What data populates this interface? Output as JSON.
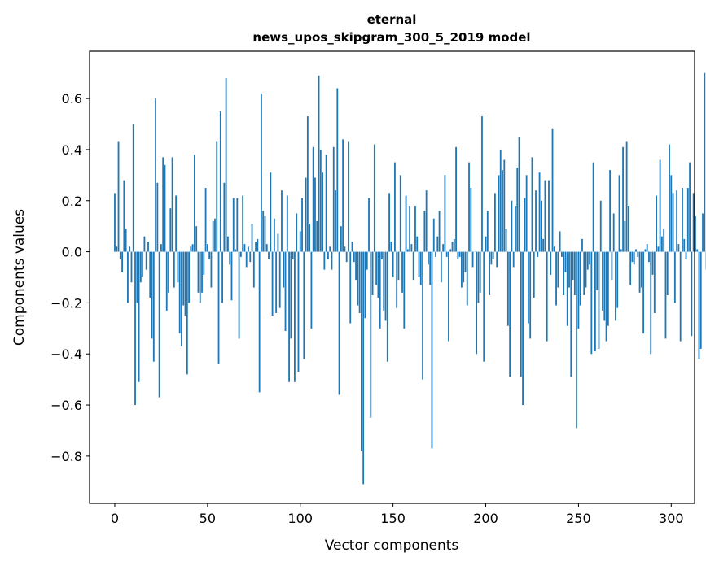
{
  "chart_data": {
    "type": "bar",
    "title": "eternal",
    "subtitle": "news_upos_skipgram_300_5_2019 model",
    "xlabel": "Vector components",
    "ylabel": "Components values",
    "xlim": [
      -13.6,
      312.6
    ],
    "ylim": [
      -0.985,
      0.785
    ],
    "xticks": [
      0,
      50,
      100,
      150,
      200,
      250,
      300
    ],
    "xtick_labels": [
      "0",
      "50",
      "100",
      "150",
      "200",
      "250",
      "300"
    ],
    "yticks": [
      -0.8,
      -0.6,
      -0.4,
      -0.2,
      0.0,
      0.2,
      0.4,
      0.6
    ],
    "ytick_labels": [
      "−0.8",
      "−0.6",
      "−0.4",
      "−0.2",
      "0.0",
      "0.2",
      "0.4",
      "0.6"
    ],
    "grid": false,
    "bar_color": "#1f77b4",
    "values": [
      0.23,
      0.02,
      0.43,
      -0.03,
      -0.08,
      0.28,
      0.09,
      -0.2,
      0.02,
      -0.12,
      0.5,
      -0.6,
      -0.2,
      -0.51,
      -0.12,
      -0.1,
      0.06,
      -0.07,
      0.04,
      -0.18,
      -0.34,
      -0.43,
      0.6,
      0.27,
      -0.57,
      0.03,
      0.37,
      0.34,
      -0.23,
      -0.16,
      0.17,
      0.37,
      -0.14,
      0.22,
      -0.12,
      -0.32,
      -0.37,
      -0.21,
      -0.25,
      -0.48,
      -0.2,
      0.02,
      0.03,
      0.38,
      0.1,
      -0.16,
      -0.2,
      -0.16,
      -0.09,
      0.25,
      0.03,
      -0.03,
      -0.14,
      0.12,
      0.13,
      0.43,
      -0.44,
      0.55,
      -0.2,
      0.27,
      0.68,
      0.06,
      -0.05,
      -0.19,
      0.21,
      0.01,
      0.21,
      -0.34,
      -0.02,
      0.22,
      0.03,
      -0.06,
      0.02,
      -0.04,
      0.11,
      -0.14,
      0.04,
      0.05,
      -0.55,
      0.62,
      0.16,
      0.14,
      0.03,
      -0.03,
      0.31,
      -0.25,
      0.13,
      -0.24,
      0.07,
      -0.22,
      0.24,
      -0.14,
      -0.31,
      0.22,
      -0.51,
      -0.34,
      -0.03,
      -0.51,
      0.15,
      -0.47,
      0.08,
      0.21,
      -0.42,
      0.29,
      0.53,
      0.11,
      -0.3,
      0.41,
      0.29,
      0.12,
      0.69,
      0.4,
      0.31,
      -0.07,
      0.38,
      -0.03,
      0.02,
      -0.07,
      0.41,
      0.24,
      0.64,
      -0.56,
      0.1,
      0.44,
      0.02,
      -0.04,
      0.43,
      -0.28,
      0.04,
      -0.04,
      -0.11,
      -0.21,
      -0.24,
      -0.78,
      -0.91,
      -0.26,
      -0.07,
      0.21,
      -0.65,
      -0.17,
      0.42,
      -0.13,
      -0.18,
      -0.3,
      -0.03,
      -0.23,
      -0.27,
      -0.43,
      0.23,
      0.04,
      -0.1,
      0.35,
      -0.22,
      -0.11,
      0.3,
      -0.16,
      -0.3,
      0.22,
      0.01,
      0.18,
      0.03,
      -0.11,
      0.18,
      0.06,
      -0.1,
      -0.13,
      -0.5,
      0.16,
      0.24,
      -0.05,
      -0.13,
      -0.77,
      0.13,
      -0.02,
      0.06,
      0.16,
      -0.12,
      0.03,
      0.3,
      -0.02,
      -0.35,
      0.01,
      0.04,
      0.05,
      0.41,
      -0.03,
      -0.02,
      -0.14,
      -0.12,
      -0.08,
      -0.21,
      0.35,
      0.25,
      -0.06,
      0.0,
      -0.4,
      -0.2,
      -0.16,
      0.53,
      -0.43,
      0.06,
      0.16,
      -0.17,
      -0.05,
      -0.03,
      0.23,
      -0.06,
      0.3,
      0.4,
      0.32,
      0.36,
      0.09,
      -0.29,
      -0.49,
      0.2,
      -0.06,
      0.18,
      0.33,
      0.45,
      -0.49,
      -0.6,
      0.21,
      0.3,
      -0.28,
      -0.34,
      0.37,
      -0.18,
      0.24,
      -0.02,
      0.31,
      0.2,
      0.05,
      0.28,
      -0.35,
      0.28,
      -0.09,
      0.48,
      0.02,
      -0.21,
      -0.14,
      0.08,
      -0.02,
      -0.17,
      -0.08,
      -0.29,
      -0.14,
      -0.49,
      -0.11,
      -0.17,
      -0.69,
      -0.3,
      -0.21,
      0.05,
      -0.17,
      -0.14,
      -0.07,
      -0.05,
      -0.4,
      0.35,
      -0.39,
      -0.15,
      -0.38,
      0.2,
      -0.23,
      -0.27,
      -0.35,
      -0.29,
      0.32,
      -0.11,
      0.15,
      -0.27,
      -0.22,
      0.3,
      0.01,
      0.41,
      0.12,
      0.43,
      0.18,
      -0.13,
      -0.04,
      -0.05,
      0.01,
      -0.02,
      -0.16,
      -0.14,
      -0.32,
      0.01,
      0.03,
      -0.04,
      -0.4,
      -0.09,
      -0.24,
      0.22,
      0.02,
      0.36,
      0.06,
      0.09,
      -0.34,
      -0.17,
      0.42,
      0.3,
      0.23,
      -0.2,
      0.24,
      0.03,
      -0.35,
      0.25,
      0.05,
      -0.03,
      0.25,
      0.35,
      -0.33,
      0.23,
      0.14,
      0.01,
      -0.42,
      -0.38,
      0.15,
      0.7,
      -0.07
    ]
  }
}
